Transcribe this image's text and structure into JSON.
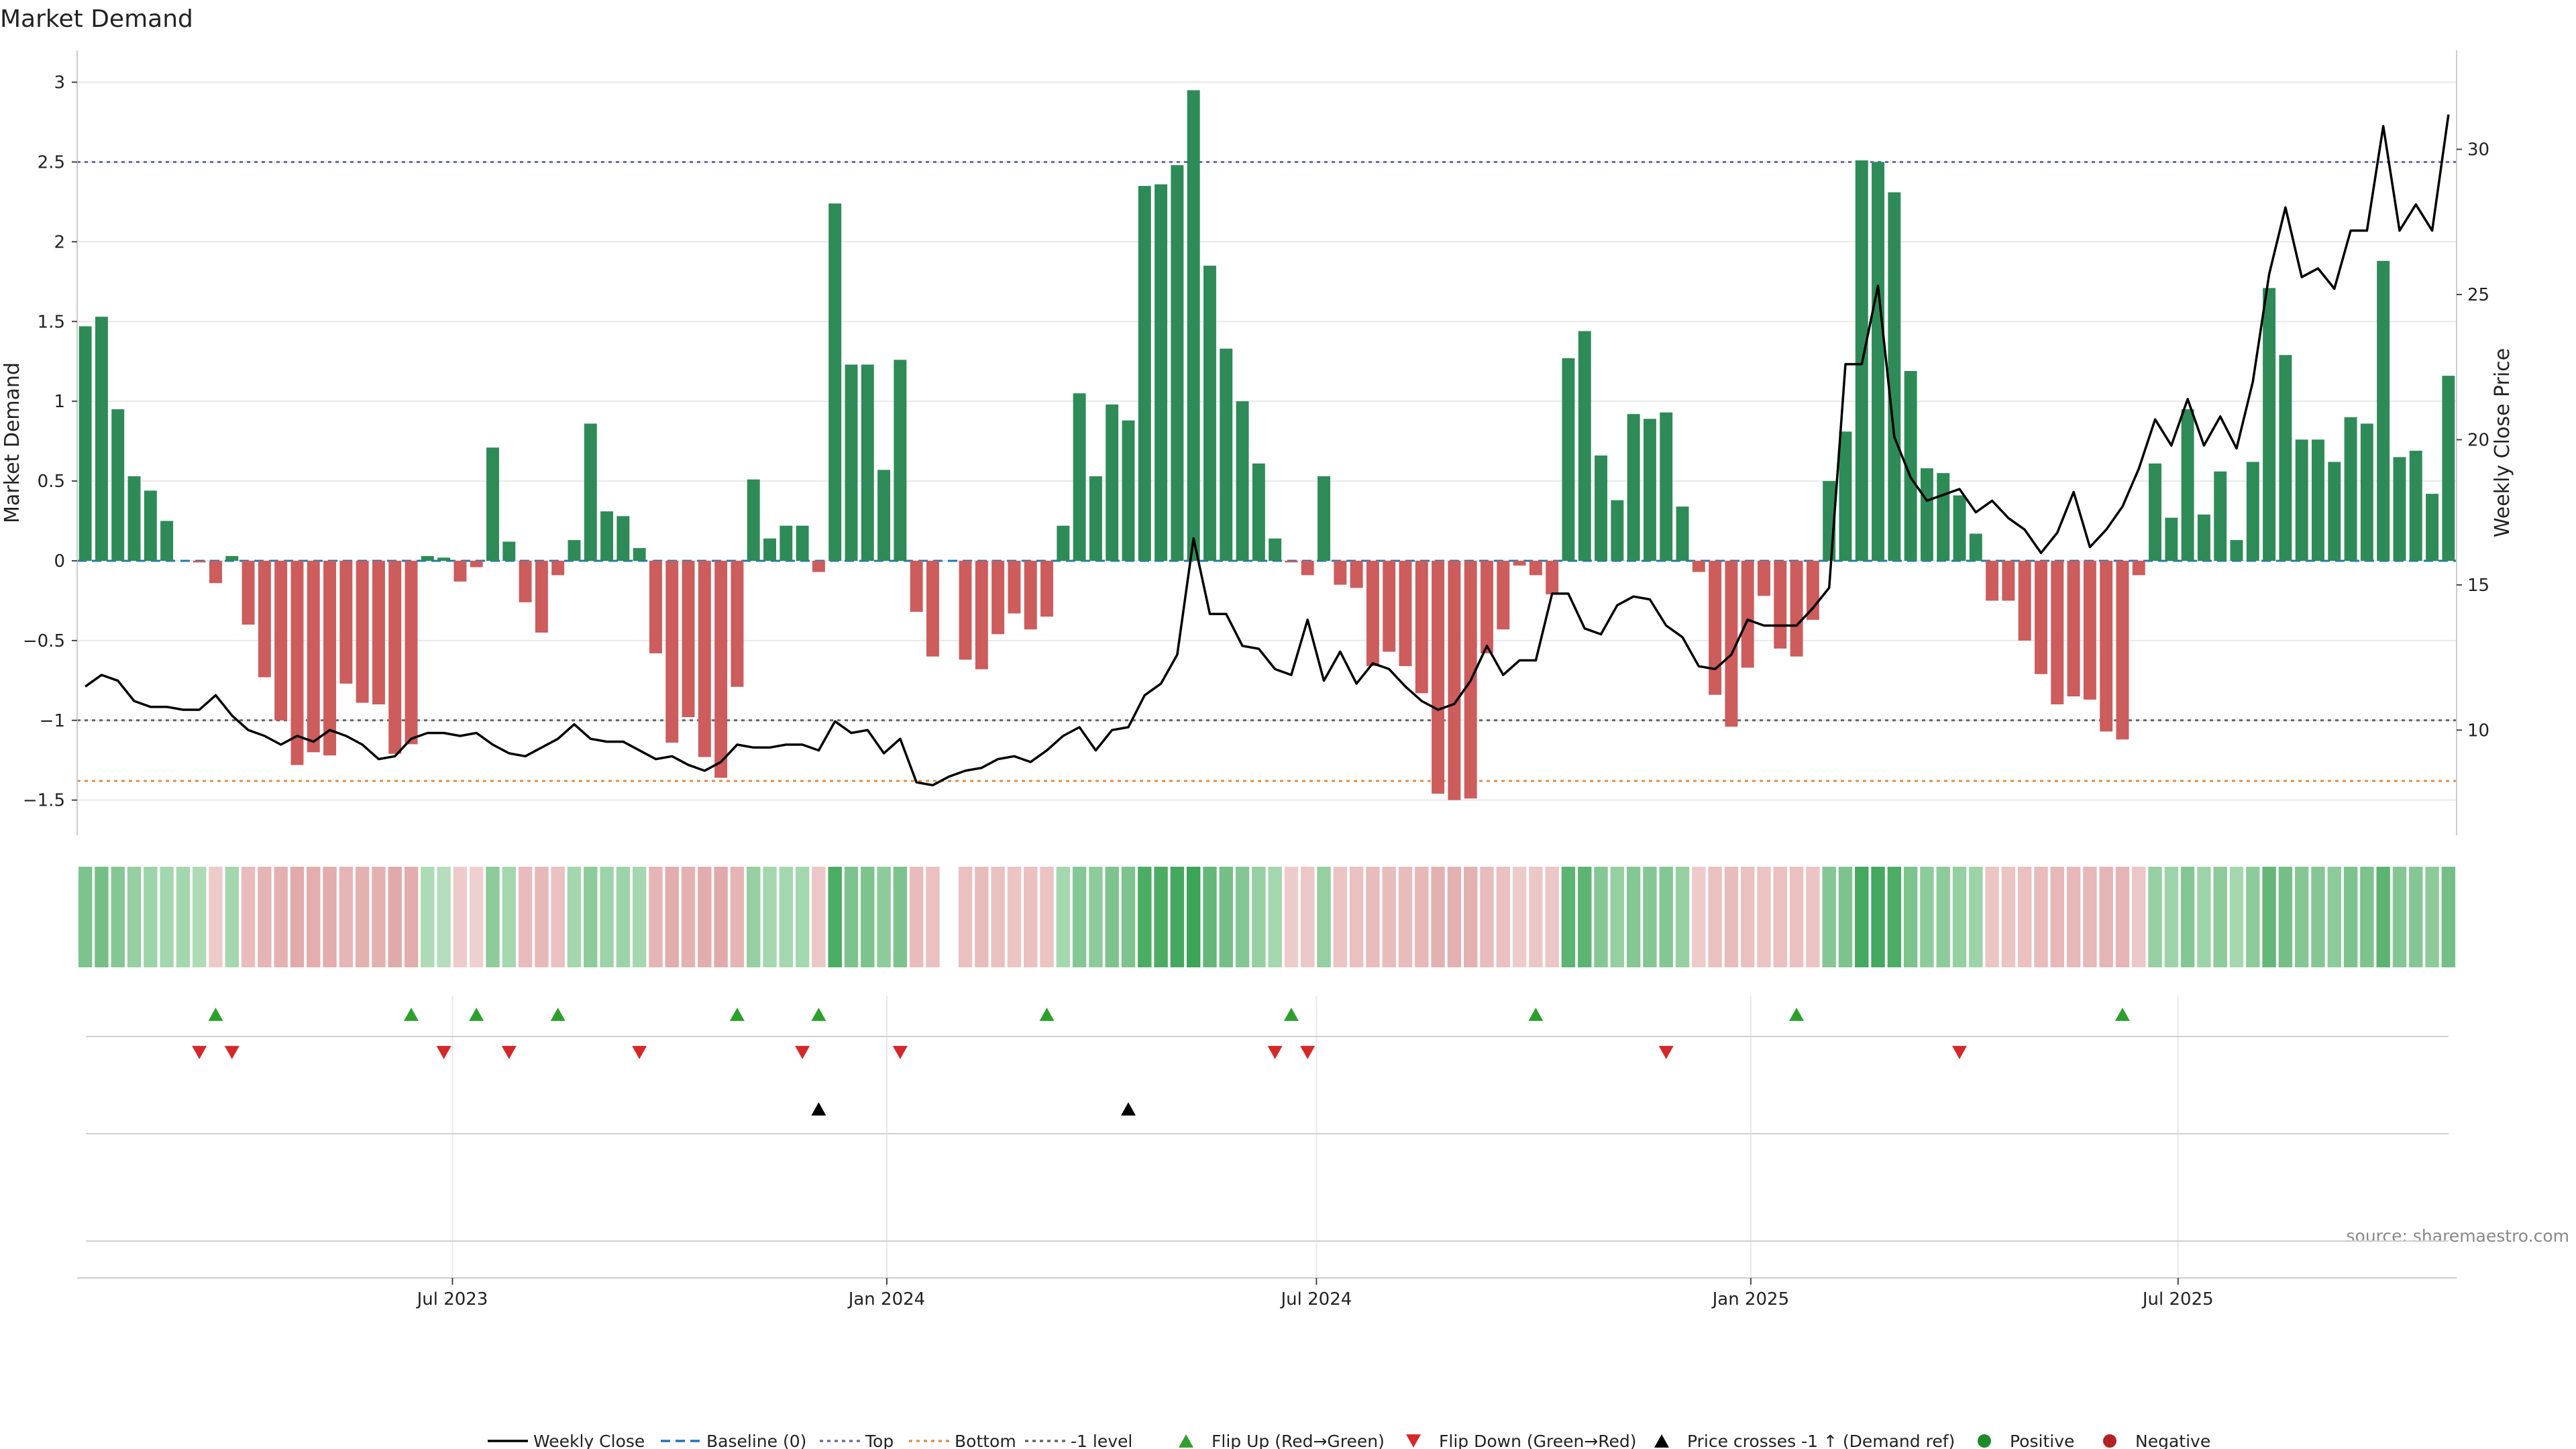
{
  "chart_data": {
    "type": "bar",
    "title": "Market Demand",
    "ylabel": "Market Demand",
    "y2label": "Weekly Close Price",
    "source": "source: sharemaestro.com",
    "ylim": [
      -1.72,
      3.2
    ],
    "y2lim": [
      6.38,
      33.41
    ],
    "yticks": [
      -1.5,
      -1,
      -0.5,
      0,
      0.5,
      1,
      1.5,
      2,
      2.5,
      3
    ],
    "ytick_labels": [
      "−1.5",
      "−1",
      "−0.5",
      "0",
      "0.5",
      "1",
      "1.5",
      "2",
      "2.5",
      "3"
    ],
    "y2ticks": [
      10,
      15,
      20,
      25,
      30
    ],
    "y2tick_labels": [
      "10",
      "15",
      "20",
      "25",
      "30"
    ],
    "x_start": "2023-01-23",
    "x_end": "2025-10-27",
    "xticks": [
      "2023-07-01",
      "2024-01-01",
      "2024-07-01",
      "2025-01-01",
      "2025-07-01"
    ],
    "xtick_labels": [
      "Jul 2023",
      "Jan 2024",
      "Jul 2024",
      "Jan 2025",
      "Jul 2025"
    ],
    "reference_lines": [
      {
        "name": "Top",
        "y": 2.5,
        "color": "#6a6aaa",
        "style": "dotted"
      },
      {
        "name": "-1 level",
        "y": -1,
        "color": "#666666",
        "style": "dotted"
      },
      {
        "name": "Bottom",
        "y": -1.38,
        "color": "#e0904a",
        "style": "dotted"
      }
    ],
    "demand": [
      1.47,
      1.53,
      0.95,
      0.53,
      0.44,
      0.25,
      0,
      -0.01,
      -0.14,
      0.03,
      -0.4,
      -0.73,
      -1.0,
      -1.28,
      -1.2,
      -1.22,
      -0.77,
      -0.89,
      -0.9,
      -1.21,
      -1.15,
      0.03,
      0.02,
      -0.13,
      -0.04,
      0.71,
      0.12,
      -0.26,
      -0.45,
      -0.09,
      0.13,
      0.86,
      0.31,
      0.28,
      0.08,
      -0.58,
      -1.14,
      -0.98,
      -1.23,
      -1.36,
      -0.79,
      0.51,
      0.14,
      0.22,
      0.22,
      -0.07,
      2.24,
      1.23,
      1.23,
      0.57,
      1.26,
      -0.32,
      -0.6,
      0,
      -0.62,
      -0.68,
      -0.46,
      -0.33,
      -0.43,
      -0.35,
      0.22,
      1.05,
      0.53,
      0.98,
      0.88,
      2.35,
      2.36,
      2.48,
      2.95,
      1.85,
      1.33,
      1.0,
      0.61,
      0.14,
      -0.01,
      -0.09,
      0.53,
      -0.15,
      -0.17,
      -0.66,
      -0.57,
      -0.66,
      -0.83,
      -1.46,
      -1.5,
      -1.49,
      -0.58,
      -0.43,
      -0.03,
      -0.09,
      -0.21,
      1.27,
      1.44,
      0.66,
      0.38,
      0.92,
      0.89,
      0.93,
      0.34,
      -0.07,
      -0.84,
      -1.04,
      -0.67,
      -0.22,
      -0.55,
      -0.6,
      -0.37,
      0.5,
      0.81,
      2.51,
      2.5,
      2.31,
      1.19,
      0.58,
      0.55,
      0.41,
      0.17,
      -0.25,
      -0.25,
      -0.5,
      -0.71,
      -0.9,
      -0.85,
      -0.87,
      -1.07,
      -1.12,
      -0.09,
      0.61,
      0.27,
      0.95,
      0.29,
      0.56,
      0.13,
      0.62,
      1.71,
      1.29,
      0.76,
      0.76,
      0.62,
      0.9,
      0.86,
      1.88,
      0.65,
      0.69,
      0.42,
      1.16
    ],
    "close": [
      11.5,
      11.9,
      11.7,
      11.0,
      10.8,
      10.8,
      10.7,
      10.7,
      11.2,
      10.5,
      10.0,
      9.8,
      9.5,
      9.8,
      9.6,
      10.0,
      9.8,
      9.5,
      9.0,
      9.1,
      9.7,
      9.9,
      9.9,
      9.8,
      9.9,
      9.5,
      9.2,
      9.1,
      9.4,
      9.7,
      10.2,
      9.7,
      9.6,
      9.6,
      9.3,
      9.0,
      9.1,
      8.8,
      8.6,
      8.9,
      9.5,
      9.4,
      9.4,
      9.5,
      9.5,
      9.3,
      10.3,
      9.9,
      10.0,
      9.2,
      9.7,
      8.2,
      8.1,
      8.4,
      8.6,
      8.7,
      9.0,
      9.1,
      8.9,
      9.3,
      9.8,
      10.1,
      9.3,
      10.0,
      10.1,
      11.2,
      11.6,
      12.6,
      16.6,
      14.0,
      14.0,
      12.9,
      12.8,
      12.1,
      11.9,
      13.8,
      11.7,
      12.7,
      11.6,
      12.3,
      12.1,
      11.5,
      11.0,
      10.7,
      10.9,
      11.7,
      12.9,
      11.9,
      12.4,
      12.4,
      14.7,
      14.7,
      13.5,
      13.3,
      14.3,
      14.6,
      14.5,
      13.6,
      13.2,
      12.2,
      12.1,
      12.6,
      13.8,
      13.6,
      13.6,
      13.6,
      14.2,
      14.9,
      22.6,
      22.6,
      25.3,
      20.1,
      18.7,
      17.9,
      18.1,
      18.3,
      17.5,
      17.9,
      17.3,
      16.9,
      16.1,
      16.8,
      18.2,
      16.3,
      16.9,
      17.7,
      19.0,
      20.7,
      19.8,
      21.4,
      19.8,
      20.8,
      19.7,
      22.0,
      25.7,
      28.0,
      25.6,
      25.9,
      25.2,
      27.2,
      27.2,
      30.8,
      27.2,
      28.1,
      27.2,
      31.2
    ],
    "strip_values": [
      0.55,
      0.6,
      0.5,
      0.4,
      0.35,
      0.3,
      0.3,
      0.25,
      -0.15,
      0.3,
      -0.35,
      -0.45,
      -0.5,
      -0.6,
      -0.55,
      -0.55,
      -0.45,
      -0.5,
      -0.5,
      -0.6,
      -0.55,
      0.25,
      0.2,
      -0.15,
      -0.1,
      0.45,
      0.3,
      -0.35,
      -0.4,
      -0.3,
      0.3,
      0.45,
      0.35,
      0.35,
      0.3,
      -0.45,
      -0.55,
      -0.5,
      -0.55,
      -0.6,
      -0.45,
      0.4,
      0.3,
      0.3,
      0.3,
      -0.2,
      0.85,
      0.55,
      0.55,
      0.45,
      0.55,
      -0.35,
      -0.3,
      null,
      -0.3,
      -0.35,
      -0.3,
      -0.25,
      -0.3,
      -0.25,
      0.3,
      0.5,
      0.45,
      0.55,
      0.55,
      0.85,
      0.85,
      0.9,
      0.95,
      0.7,
      0.6,
      0.5,
      0.4,
      0.3,
      -0.15,
      -0.2,
      0.4,
      -0.25,
      -0.3,
      -0.35,
      -0.35,
      -0.35,
      -0.4,
      -0.5,
      -0.5,
      -0.5,
      -0.35,
      -0.3,
      -0.15,
      -0.2,
      -0.2,
      0.75,
      0.75,
      0.5,
      0.4,
      0.5,
      0.5,
      0.5,
      0.4,
      -0.15,
      -0.3,
      -0.35,
      -0.3,
      -0.25,
      -0.3,
      -0.3,
      -0.25,
      0.5,
      0.55,
      0.9,
      0.9,
      0.85,
      0.55,
      0.45,
      0.45,
      0.4,
      0.35,
      -0.25,
      -0.25,
      -0.3,
      -0.35,
      -0.4,
      -0.4,
      -0.4,
      -0.45,
      -0.45,
      -0.2,
      0.4,
      0.35,
      0.5,
      0.35,
      0.45,
      0.3,
      0.45,
      0.7,
      0.6,
      0.5,
      0.5,
      0.45,
      0.55,
      0.55,
      0.75,
      0.5,
      0.5,
      0.45,
      0.6
    ],
    "flip_up_idx": [
      8,
      20,
      24,
      29,
      40,
      45,
      59,
      74,
      89,
      105,
      125
    ],
    "flip_down_idx": [
      7,
      9,
      22,
      26,
      34,
      44,
      50,
      73,
      75,
      97,
      115
    ],
    "price_cross_idx": [
      45,
      64
    ],
    "legend": [
      {
        "label": "Weekly Close",
        "kind": "line",
        "color": "#000000"
      },
      {
        "label": "Baseline (0)",
        "kind": "dash",
        "color": "#1f77b4"
      },
      {
        "label": "Top",
        "kind": "dot",
        "color": "#6a6aaa"
      },
      {
        "label": "Bottom",
        "kind": "dot",
        "color": "#e0904a"
      },
      {
        "label": "-1 level",
        "kind": "dot",
        "color": "#666666"
      },
      {
        "label": "Flip Up (Red→Green)",
        "kind": "tri-up",
        "color": "#2ca02c"
      },
      {
        "label": "Flip Down (Green→Red)",
        "kind": "tri-down",
        "color": "#d62728"
      },
      {
        "label": "Price crosses -1 ↑ (Demand ref)",
        "kind": "tri-up",
        "color": "#000000"
      },
      {
        "label": "Positive",
        "kind": "circle",
        "color": "#1e8a2e"
      },
      {
        "label": "Negative",
        "kind": "circle",
        "color": "#b22222"
      }
    ],
    "colors": {
      "positive": "#2e8b57",
      "negative": "#cd5c5c",
      "grid": "#e8e8e8"
    }
  }
}
